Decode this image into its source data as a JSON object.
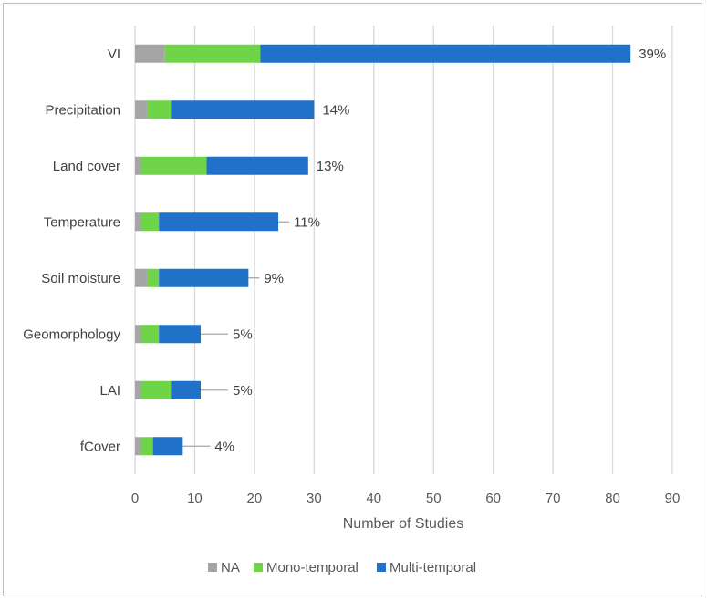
{
  "chart_data": {
    "type": "bar",
    "orientation": "horizontal",
    "stacked": true,
    "categories": [
      "VI",
      "Precipitation",
      "Land cover",
      "Temperature",
      "Soil moisture",
      "Geomorphology",
      "LAI",
      "fCover"
    ],
    "series": [
      {
        "name": "NA",
        "color": "#a5a5a5",
        "values": [
          5,
          2,
          1,
          1,
          2,
          1,
          1,
          1
        ]
      },
      {
        "name": "Mono-temporal",
        "color": "#70d448",
        "values": [
          16,
          4,
          11,
          3,
          2,
          3,
          5,
          2
        ]
      },
      {
        "name": "Multi-temporal",
        "color": "#1f72c8",
        "values": [
          62,
          24,
          17,
          20,
          15,
          7,
          5,
          5
        ]
      }
    ],
    "data_labels": [
      "39%",
      "14%",
      "13%",
      "11%",
      "9%",
      "5%",
      "5%",
      "4%"
    ],
    "label_has_leader_line": [
      false,
      false,
      false,
      true,
      true,
      true,
      true,
      true
    ],
    "xlabel": "Number of Studies",
    "ylabel": "",
    "title": "",
    "xlim": [
      0,
      90
    ],
    "xticks": [
      0,
      10,
      20,
      30,
      40,
      50,
      60,
      70,
      80,
      90
    ],
    "grid": "vertical",
    "legend_position": "bottom"
  }
}
